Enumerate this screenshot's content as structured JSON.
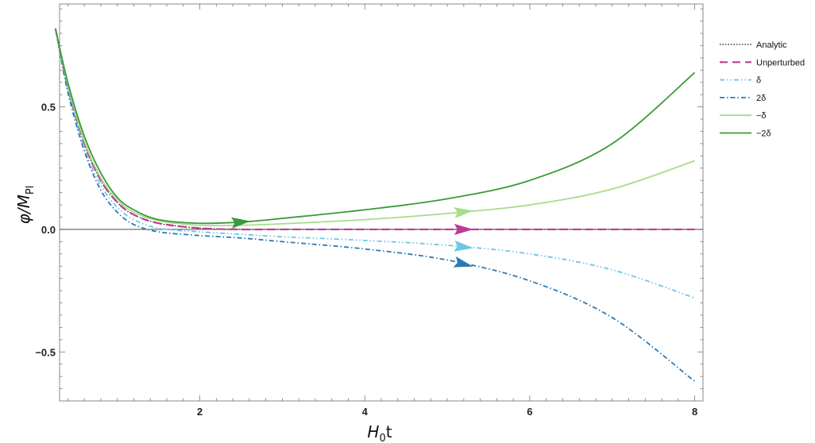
{
  "chart_data": {
    "type": "line",
    "xlabel_main": "H",
    "xlabel_sub": "0",
    "xlabel_tail": "t",
    "ylabel_main": "φ/M",
    "ylabel_sub": "Pl",
    "xlim": [
      0.3,
      8.1
    ],
    "ylim": [
      -0.7,
      0.92
    ],
    "x_ticks": [
      2,
      4,
      6,
      8
    ],
    "x_tick_labels": [
      "2",
      "4",
      "6",
      "8"
    ],
    "y_ticks": [
      0.5,
      0.0,
      -0.5
    ],
    "y_tick_labels": [
      "0.5",
      "0.0",
      "−0.5"
    ],
    "grid": false,
    "zero_line": true,
    "legend_position": "right",
    "series": [
      {
        "name": "Analytic",
        "color": "#111111",
        "style": "dotted",
        "x": [
          0.25,
          0.4,
          0.6,
          0.8,
          1.0,
          1.2,
          1.5,
          2.0,
          2.5,
          3.0,
          4.0,
          5.0,
          6.0,
          7.0,
          8.0
        ],
        "y": [
          0.82,
          0.58,
          0.35,
          0.2,
          0.11,
          0.06,
          0.025,
          0.005,
          0.0,
          0.0,
          0.0,
          0.0,
          0.0,
          0.0,
          0.0
        ]
      },
      {
        "name": "Unperturbed",
        "color": "#c0379a",
        "style": "dashed",
        "arrow_at": 5.2,
        "x": [
          0.25,
          0.4,
          0.6,
          0.8,
          1.0,
          1.2,
          1.5,
          2.0,
          2.5,
          3.0,
          4.0,
          5.0,
          6.0,
          7.0,
          8.0
        ],
        "y": [
          0.82,
          0.58,
          0.35,
          0.2,
          0.11,
          0.06,
          0.025,
          0.005,
          0.0,
          0.0,
          0.0,
          0.0,
          0.0,
          0.0,
          0.0
        ]
      },
      {
        "name": "δ",
        "color": "#6cc6e5",
        "style": "dashdotdot",
        "arrow_at": 5.2,
        "x": [
          0.25,
          0.4,
          0.6,
          0.8,
          1.0,
          1.2,
          1.5,
          2.0,
          2.5,
          3.0,
          4.0,
          5.0,
          6.0,
          7.0,
          8.0
        ],
        "y": [
          0.82,
          0.57,
          0.33,
          0.18,
          0.09,
          0.04,
          0.005,
          -0.01,
          -0.02,
          -0.03,
          -0.045,
          -0.065,
          -0.1,
          -0.165,
          -0.28
        ]
      },
      {
        "name": "2δ",
        "color": "#2a7ab5",
        "style": "dashdot",
        "arrow_at": 5.2,
        "x": [
          0.25,
          0.4,
          0.6,
          0.8,
          1.0,
          1.2,
          1.5,
          2.0,
          2.5,
          3.0,
          4.0,
          5.0,
          6.0,
          7.0,
          8.0
        ],
        "y": [
          0.82,
          0.56,
          0.32,
          0.16,
          0.07,
          0.02,
          -0.01,
          -0.025,
          -0.035,
          -0.05,
          -0.08,
          -0.125,
          -0.21,
          -0.36,
          -0.62
        ]
      },
      {
        "name": "−δ",
        "color": "#a8dc8c",
        "style": "solid",
        "arrow_at": 5.2,
        "x": [
          0.25,
          0.4,
          0.6,
          0.8,
          1.0,
          1.2,
          1.5,
          2.0,
          2.5,
          3.0,
          4.0,
          5.0,
          6.0,
          7.0,
          8.0
        ],
        "y": [
          0.82,
          0.59,
          0.36,
          0.21,
          0.12,
          0.07,
          0.035,
          0.017,
          0.017,
          0.023,
          0.04,
          0.065,
          0.1,
          0.165,
          0.28
        ]
      },
      {
        "name": "−2δ",
        "color": "#3a9a3a",
        "style": "solid",
        "arrow_at": 2.5,
        "x": [
          0.25,
          0.4,
          0.6,
          0.8,
          1.0,
          1.2,
          1.5,
          2.0,
          2.5,
          3.0,
          4.0,
          5.0,
          6.0,
          7.0,
          8.0
        ],
        "y": [
          0.82,
          0.6,
          0.38,
          0.23,
          0.13,
          0.08,
          0.04,
          0.025,
          0.03,
          0.045,
          0.08,
          0.125,
          0.2,
          0.35,
          0.64
        ]
      }
    ]
  }
}
